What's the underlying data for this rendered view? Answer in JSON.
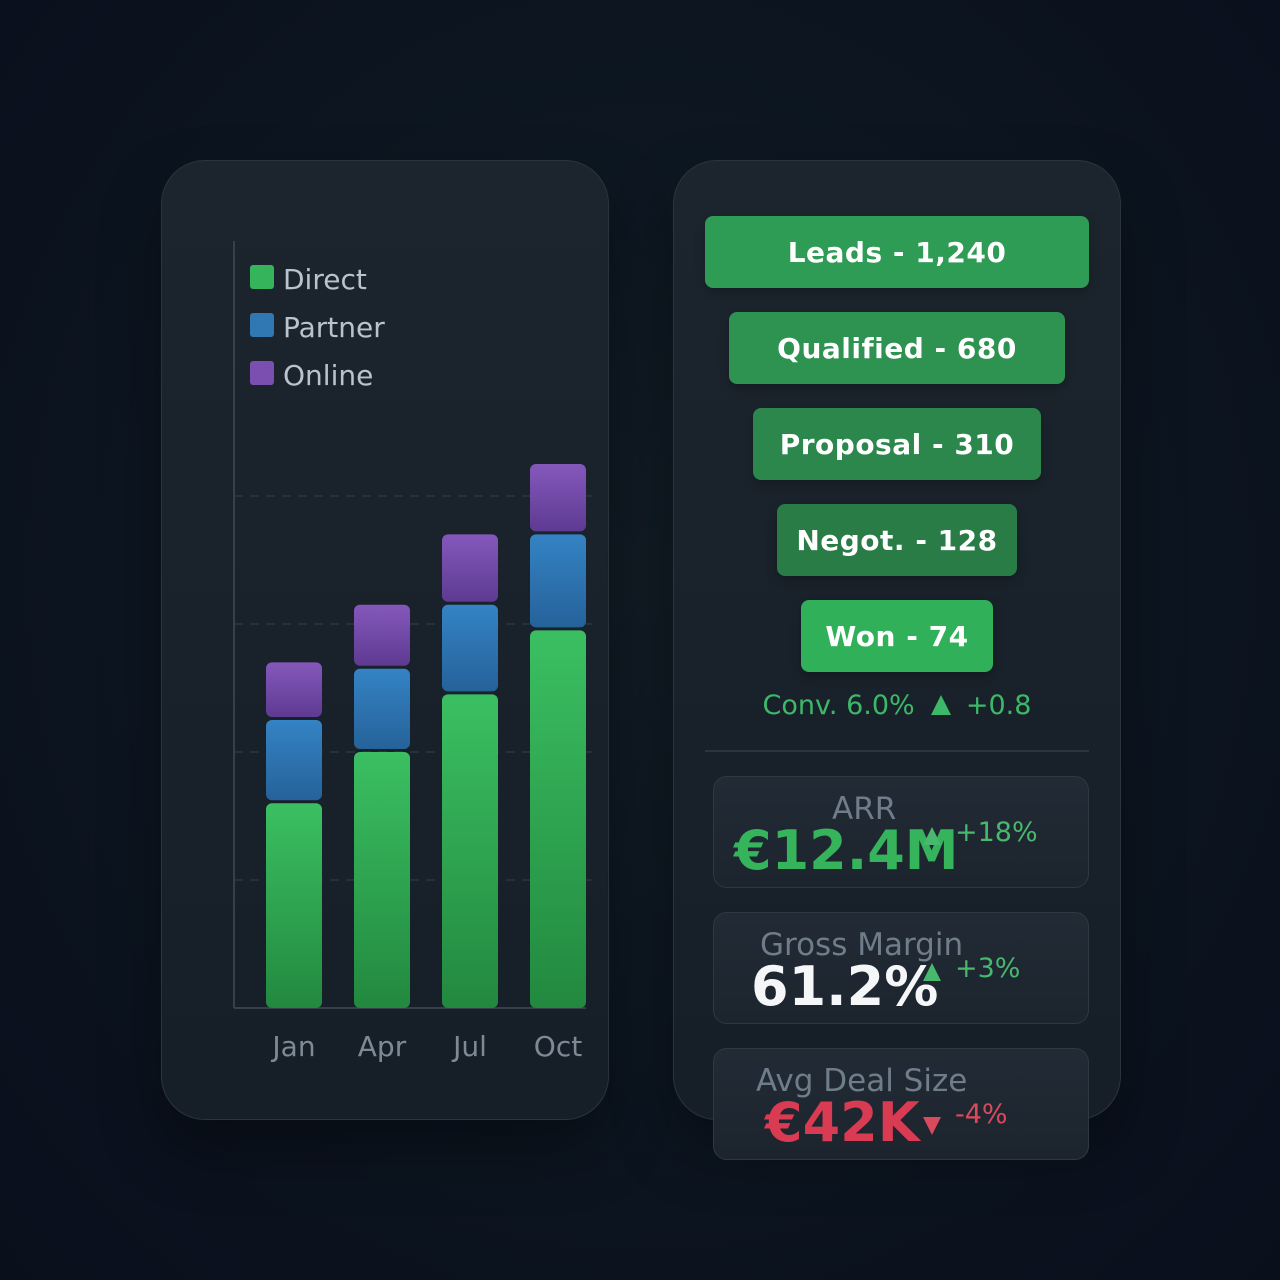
{
  "colors": {
    "direct": "#35b45c",
    "partner": "#2f78b4",
    "online": "#7a4fb0",
    "positive": "#3cb868",
    "negative": "#d93b52",
    "funnel": [
      "#2f9c55",
      "#2e9251",
      "#2c874c",
      "#2a7c47",
      "#31b05a"
    ]
  },
  "chart_data": {
    "type": "bar",
    "stacked": true,
    "categories": [
      "Jan",
      "Apr",
      "Jul",
      "Oct"
    ],
    "series": [
      {
        "name": "Direct",
        "values": [
          1.6,
          2.0,
          2.45,
          2.95
        ]
      },
      {
        "name": "Partner",
        "values": [
          0.65,
          0.65,
          0.7,
          0.75
        ]
      },
      {
        "name": "Online",
        "values": [
          0.45,
          0.5,
          0.55,
          0.55
        ]
      }
    ],
    "ylim": [
      0,
      6
    ],
    "grid": "horizontal dashed",
    "legend_position": "top-left",
    "xlabel": "",
    "ylabel": ""
  },
  "funnel": {
    "stages": [
      {
        "label": "Leads - 1,240"
      },
      {
        "label": "Qualified - 680"
      },
      {
        "label": "Proposal - 310"
      },
      {
        "label": "Negot. - 128"
      },
      {
        "label": "Won - 74"
      }
    ],
    "conversion": {
      "text": "Conv. 6.0%",
      "delta": "+0.8",
      "trend": "up"
    }
  },
  "kpis": {
    "arr": {
      "label": "ARR",
      "value": "€12.4M",
      "delta": "+18%",
      "trend": "up"
    },
    "gross_margin": {
      "label": "Gross Margin",
      "value": "61.2%",
      "delta": "+3%",
      "trend": "up"
    },
    "avg_deal": {
      "label": "Avg Deal Size",
      "value": "€42K",
      "delta": "-4%",
      "trend": "down"
    }
  }
}
